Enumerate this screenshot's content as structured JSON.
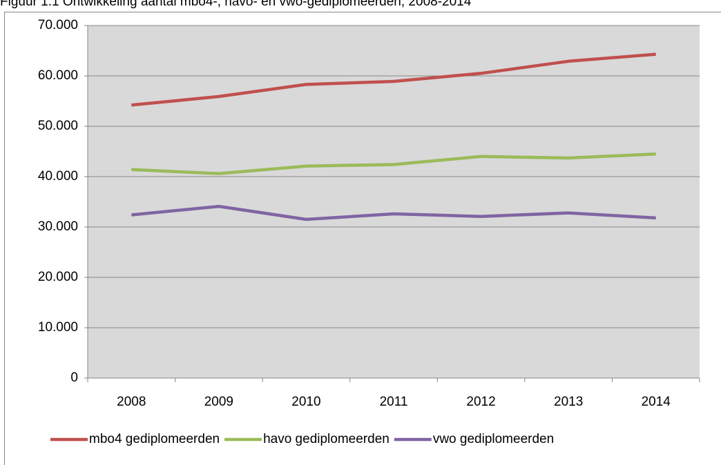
{
  "chart_data": {
    "type": "line",
    "title": "Figuur 1.1 Ontwikkeling aantal mbo4-, havo- en vwo-gediplomeerden, 2008-2014",
    "categories": [
      "2008",
      "2009",
      "2010",
      "2011",
      "2012",
      "2013",
      "2014"
    ],
    "series": [
      {
        "name": "mbo4 gediplomeerden",
        "color": "#c0504d",
        "values": [
          54200,
          55900,
          58300,
          58900,
          60500,
          62900,
          64300
        ]
      },
      {
        "name": "havo gediplomeerden",
        "color": "#9bbb59",
        "values": [
          41400,
          40600,
          42100,
          42400,
          44000,
          43700,
          44500
        ]
      },
      {
        "name": "vwo gediplomeerden",
        "color": "#8064a2",
        "values": [
          32400,
          34100,
          31500,
          32600,
          32100,
          32800,
          31800
        ]
      }
    ],
    "ylim": [
      0,
      70000
    ],
    "yticks": [
      0,
      {
        "value": 10000,
        "label": "10.000"
      },
      {
        "value": 20000,
        "label": "20.000"
      },
      {
        "value": 30000,
        "label": "30.000"
      },
      {
        "value": 40000,
        "label": "40.000"
      },
      {
        "value": 50000,
        "label": "50.000"
      },
      {
        "value": 60000,
        "label": "60.000"
      },
      {
        "value": 70000,
        "label": "70.000"
      }
    ],
    "grid": true,
    "legend": "bottom",
    "plot_background": "#d9d9d9"
  }
}
